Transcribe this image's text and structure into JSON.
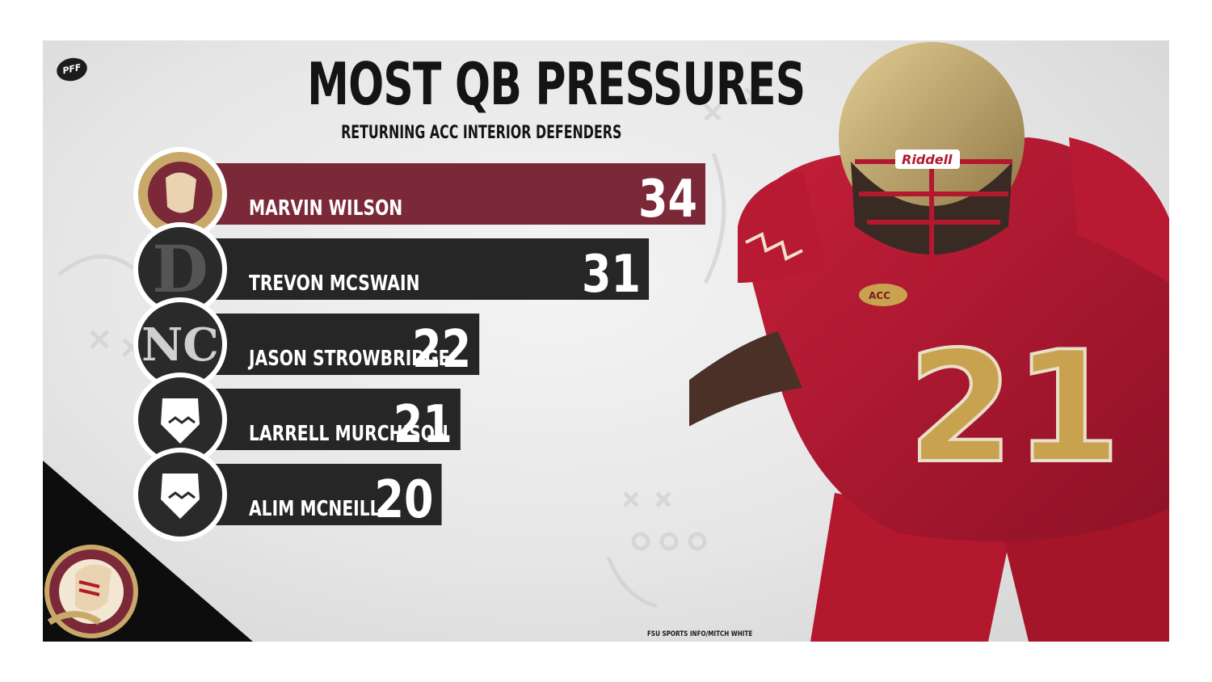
{
  "header": {
    "brand": "PFF",
    "title": "MOST QB PRESSURES",
    "subtitle": "RETURNING ACC INTERIOR DEFENDERS"
  },
  "credit": "FSU SPORTS INFO/MITCH WHITE",
  "colors": {
    "highlight_bar": "#7b2938",
    "bar": "#262626",
    "text": "#141414",
    "garnet": "#a6192e",
    "gold": "#c9a96a"
  },
  "logos": [
    "seminole-head-logo",
    "duke-d-logo",
    "unc-nc-logo",
    "nc-state-wolf-logo",
    "nc-state-wolf-logo"
  ],
  "chart_data": {
    "type": "bar",
    "orientation": "horizontal",
    "title": "MOST QB PRESSURES",
    "subtitle": "RETURNING ACC INTERIOR DEFENDERS",
    "categories": [
      "MARVIN WILSON",
      "TREVON MCSWAIN",
      "JASON STROWBRIDGE",
      "LARRELL MURCHISON",
      "ALIM MCNEILL"
    ],
    "values": [
      34,
      31,
      22,
      21,
      20
    ],
    "xlabel": "",
    "ylabel": "",
    "grid": false,
    "legend": "none"
  }
}
